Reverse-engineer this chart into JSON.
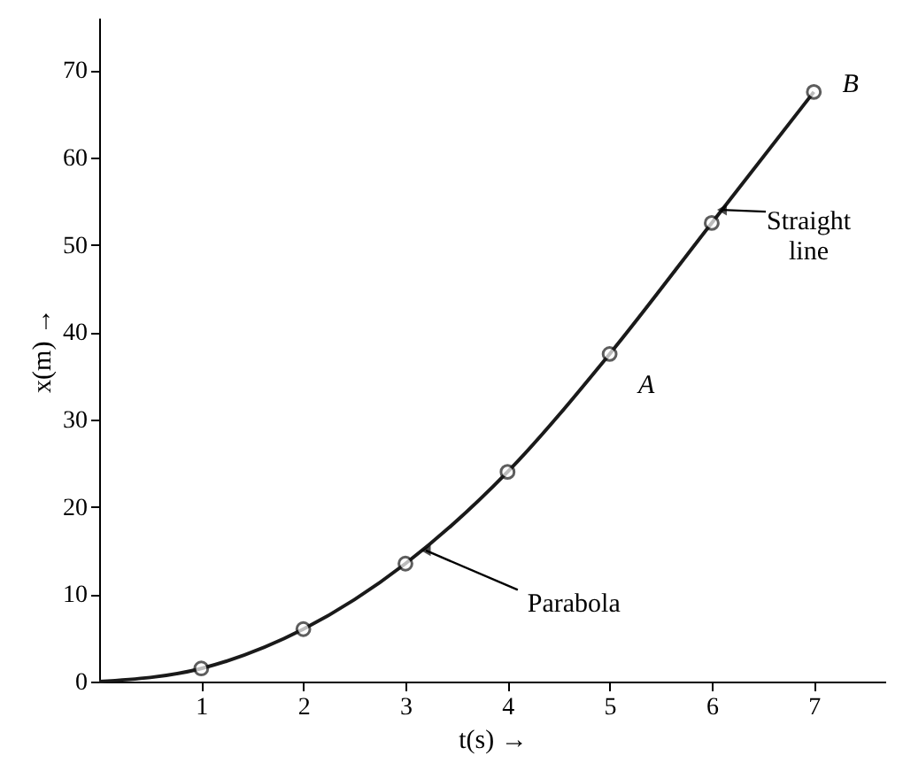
{
  "chart_data": {
    "type": "line",
    "xlabel": "t(s) →",
    "ylabel": "x(m) →",
    "x": [
      0,
      1,
      2,
      3,
      4,
      5,
      6,
      7
    ],
    "series": [
      {
        "color": "#1a1a1a",
        "marker": "none",
        "values": [
          0,
          1.5,
          6,
          13.5,
          24,
          37.5,
          52.5,
          67.5
        ]
      },
      {
        "type": "scatter",
        "color": "#1a1a1a",
        "marker": "circle",
        "x": [
          1,
          2,
          3,
          4,
          5,
          6,
          7
        ],
        "values": [
          1.5,
          6,
          13.5,
          24,
          37.5,
          52.5,
          67.5
        ]
      }
    ],
    "xlim": [
      0,
      7.7
    ],
    "xticks": [
      1,
      2,
      3,
      4,
      5,
      6,
      7
    ],
    "ylim": [
      0,
      76
    ],
    "yticks": [
      0,
      10,
      20,
      30,
      40,
      50,
      60,
      70
    ],
    "grid": false,
    "annotations": [
      {
        "text": "A",
        "x": 5,
        "y": 37.5
      },
      {
        "text": "B",
        "x": 7,
        "y": 67.5
      },
      {
        "text": "Straight line",
        "x": 6.1,
        "y": 54
      },
      {
        "text": "Parabola",
        "x": 3.2,
        "y": 15
      }
    ]
  }
}
